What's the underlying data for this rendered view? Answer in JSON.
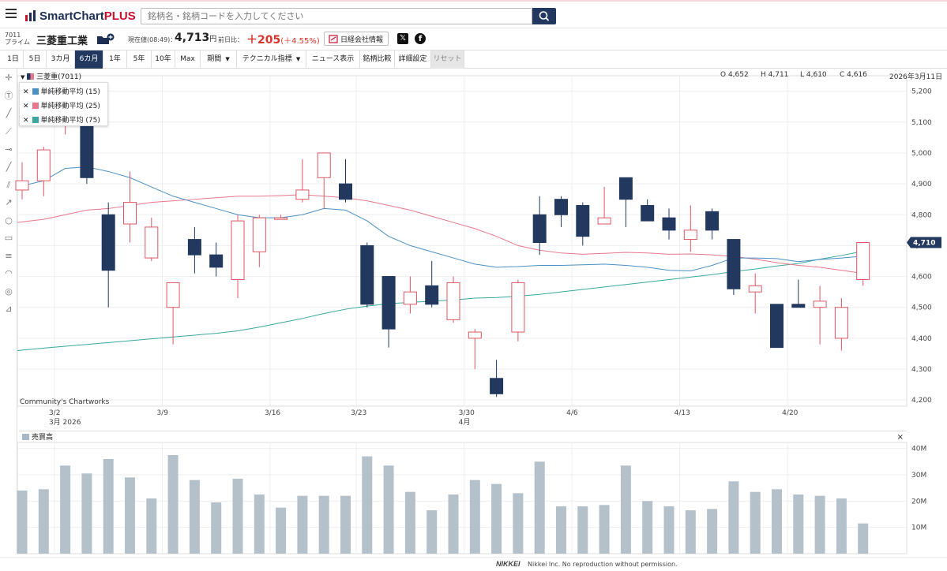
{
  "app": {
    "title_main": "SmartChart",
    "title_accent": "PLUS"
  },
  "search": {
    "placeholder": "銘柄名・銘柄コードを入力してください"
  },
  "stock": {
    "code": "7011",
    "market": "プライム",
    "name": "三菱重工業",
    "price_label": "現在値(08:49)：",
    "price": "4,713",
    "price_unit": "円",
    "prev_label": "前日比：",
    "change": "＋205",
    "change_pct": "(＋4.55%)",
    "news_button": "日経会社情報",
    "series_name": "三菱重(7011)"
  },
  "toolbar": {
    "items": [
      "1日",
      "5日",
      "3カ月",
      "6カ月",
      "1年",
      "5年",
      "10年",
      "Max",
      "期間",
      "テクニカル指標",
      "ニュース表示",
      "銘柄比較",
      "詳細設定",
      "リセット"
    ],
    "active": "6カ月"
  },
  "ohlc": {
    "open": "O 4,652",
    "high": "H 4,711",
    "low": "L 4,610",
    "close": "C 4,616",
    "date": "2026年3月11日"
  },
  "legend": [
    {
      "label": "単純移動平均 (15)",
      "color": "#4a90c2"
    },
    {
      "label": "単純移動平均 (25)",
      "color": "#e8778c"
    },
    {
      "label": "単純移動平均 (75)",
      "color": "#3aa89c"
    }
  ],
  "watermark": "Community's Chartworks",
  "volume": {
    "title": "売買高",
    "close": "×"
  },
  "footer": {
    "brand": "NIKKEI",
    "note": "Nikkei Inc. No reproduction without permission."
  },
  "chart_data": [
    {
      "type": "candlestick",
      "title": "",
      "price_label": "4,710",
      "y_ticks": [
        4200,
        4300,
        4400,
        4500,
        4600,
        4700,
        4800,
        4900,
        5000,
        5100,
        5200
      ],
      "ylim": [
        4180,
        5240
      ],
      "x_ticks": [
        {
          "index": 2,
          "label": "3/2",
          "sub": "3月 2026"
        },
        {
          "index": 7,
          "label": "3/9",
          "sub": ""
        },
        {
          "index": 12,
          "label": "3/16",
          "sub": ""
        },
        {
          "index": 16,
          "label": "3/23",
          "sub": ""
        },
        {
          "index": 21,
          "label": "3/30",
          "sub": "4月"
        },
        {
          "index": 26,
          "label": "4/6",
          "sub": ""
        },
        {
          "index": 31,
          "label": "4/13",
          "sub": ""
        },
        {
          "index": 36,
          "label": "4/20",
          "sub": ""
        }
      ],
      "candles": [
        {
          "o": 4880,
          "h": 4970,
          "l": 4850,
          "c": 4910
        },
        {
          "o": 4910,
          "h": 5020,
          "l": 4860,
          "c": 5010
        },
        {
          "o": 5090,
          "h": 5230,
          "l": 5060,
          "c": 5110
        },
        {
          "o": 5150,
          "h": 5180,
          "l": 4900,
          "c": 4920
        },
        {
          "o": 4800,
          "h": 4840,
          "l": 4500,
          "c": 4620
        },
        {
          "o": 4770,
          "h": 4940,
          "l": 4710,
          "c": 4840
        },
        {
          "o": 4660,
          "h": 4790,
          "l": 4650,
          "c": 4760
        },
        {
          "o": 4500,
          "h": 4580,
          "l": 4380,
          "c": 4580
        },
        {
          "o": 4720,
          "h": 4760,
          "l": 4610,
          "c": 4670
        },
        {
          "o": 4670,
          "h": 4710,
          "l": 4600,
          "c": 4630
        },
        {
          "o": 4590,
          "h": 4800,
          "l": 4530,
          "c": 4780
        },
        {
          "o": 4680,
          "h": 4800,
          "l": 4630,
          "c": 4790
        },
        {
          "o": 4790,
          "h": 4800,
          "l": 4790,
          "c": 4790
        },
        {
          "o": 4850,
          "h": 4980,
          "l": 4840,
          "c": 4880
        },
        {
          "o": 4920,
          "h": 5000,
          "l": 4820,
          "c": 5000
        },
        {
          "o": 4900,
          "h": 4980,
          "l": 4840,
          "c": 4850
        },
        {
          "o": 4700,
          "h": 4710,
          "l": 4500,
          "c": 4510
        },
        {
          "o": 4600,
          "h": 4600,
          "l": 4370,
          "c": 4430
        },
        {
          "o": 4510,
          "h": 4600,
          "l": 4480,
          "c": 4550
        },
        {
          "o": 4570,
          "h": 4650,
          "l": 4500,
          "c": 4510
        },
        {
          "o": 4460,
          "h": 4600,
          "l": 4450,
          "c": 4580
        },
        {
          "o": 4400,
          "h": 4430,
          "l": 4300,
          "c": 4420
        },
        {
          "o": 4270,
          "h": 4330,
          "l": 4210,
          "c": 4220
        },
        {
          "o": 4420,
          "h": 4590,
          "l": 4390,
          "c": 4580
        },
        {
          "o": 4800,
          "h": 4860,
          "l": 4670,
          "c": 4710
        },
        {
          "o": 4850,
          "h": 4860,
          "l": 4760,
          "c": 4800
        },
        {
          "o": 4830,
          "h": 4840,
          "l": 4700,
          "c": 4730
        },
        {
          "o": 4770,
          "h": 4890,
          "l": 4770,
          "c": 4790
        },
        {
          "o": 4920,
          "h": 4920,
          "l": 4760,
          "c": 4850
        },
        {
          "o": 4830,
          "h": 4850,
          "l": 4780,
          "c": 4780
        },
        {
          "o": 4790,
          "h": 4820,
          "l": 4720,
          "c": 4750
        },
        {
          "o": 4720,
          "h": 4830,
          "l": 4680,
          "c": 4750
        },
        {
          "o": 4810,
          "h": 4820,
          "l": 4720,
          "c": 4750
        },
        {
          "o": 4720,
          "h": 4720,
          "l": 4540,
          "c": 4560
        },
        {
          "o": 4550,
          "h": 4610,
          "l": 4480,
          "c": 4570
        },
        {
          "o": 4510,
          "h": 4510,
          "l": 4370,
          "c": 4370
        },
        {
          "o": 4510,
          "h": 4590,
          "l": 4510,
          "c": 4500
        },
        {
          "o": 4500,
          "h": 4570,
          "l": 4380,
          "c": 4520
        },
        {
          "o": 4400,
          "h": 4530,
          "l": 4360,
          "c": 4500
        },
        {
          "o": 4590,
          "h": 4710,
          "l": 4570,
          "c": 4710
        }
      ],
      "ma15": [
        4890,
        4910,
        4950,
        4955,
        4940,
        4920,
        4890,
        4860,
        4840,
        4820,
        4800,
        4790,
        4790,
        4800,
        4820,
        4815,
        4780,
        4730,
        4700,
        4680,
        4660,
        4640,
        4630,
        4632,
        4636,
        4636,
        4638,
        4640,
        4636,
        4630,
        4620,
        4618,
        4636,
        4660,
        4660,
        4658,
        4648,
        4655,
        4660,
        4666
      ],
      "ma25": [
        4775,
        4785,
        4800,
        4815,
        4820,
        4830,
        4840,
        4845,
        4850,
        4855,
        4860,
        4860,
        4862,
        4865,
        4860,
        4855,
        4845,
        4830,
        4815,
        4795,
        4775,
        4755,
        4730,
        4700,
        4685,
        4676,
        4672,
        4675,
        4678,
        4676,
        4672,
        4673,
        4670,
        4665,
        4656,
        4645,
        4636,
        4630,
        4620,
        4610
      ],
      "ma75": [
        4360,
        4368,
        4374,
        4380,
        4386,
        4392,
        4398,
        4404,
        4410,
        4416,
        4424,
        4436,
        4450,
        4464,
        4480,
        4494,
        4504,
        4512,
        4516,
        4520,
        4524,
        4530,
        4532,
        4536,
        4542,
        4550,
        4558,
        4566,
        4574,
        4582,
        4590,
        4598,
        4606,
        4616,
        4624,
        4634,
        4642,
        4656,
        4668,
        4682
      ]
    },
    {
      "type": "bar",
      "title": "売買高",
      "y_ticks": [
        10,
        20,
        30,
        40
      ],
      "y_tick_labels": [
        "10M",
        "20M",
        "30M",
        "40M"
      ],
      "ylim": [
        0,
        42
      ],
      "values": [
        24,
        24.5,
        33.5,
        30.5,
        36,
        29,
        21,
        37.5,
        28,
        19.5,
        28.5,
        22.5,
        17.5,
        22,
        22,
        22,
        37,
        33.5,
        23.5,
        16.5,
        22.5,
        28,
        26.5,
        23,
        35,
        18,
        18,
        18.5,
        33.5,
        20,
        18,
        16.5,
        17,
        27.5,
        23.5,
        24.5,
        22.5,
        22,
        21,
        11.5
      ]
    }
  ]
}
